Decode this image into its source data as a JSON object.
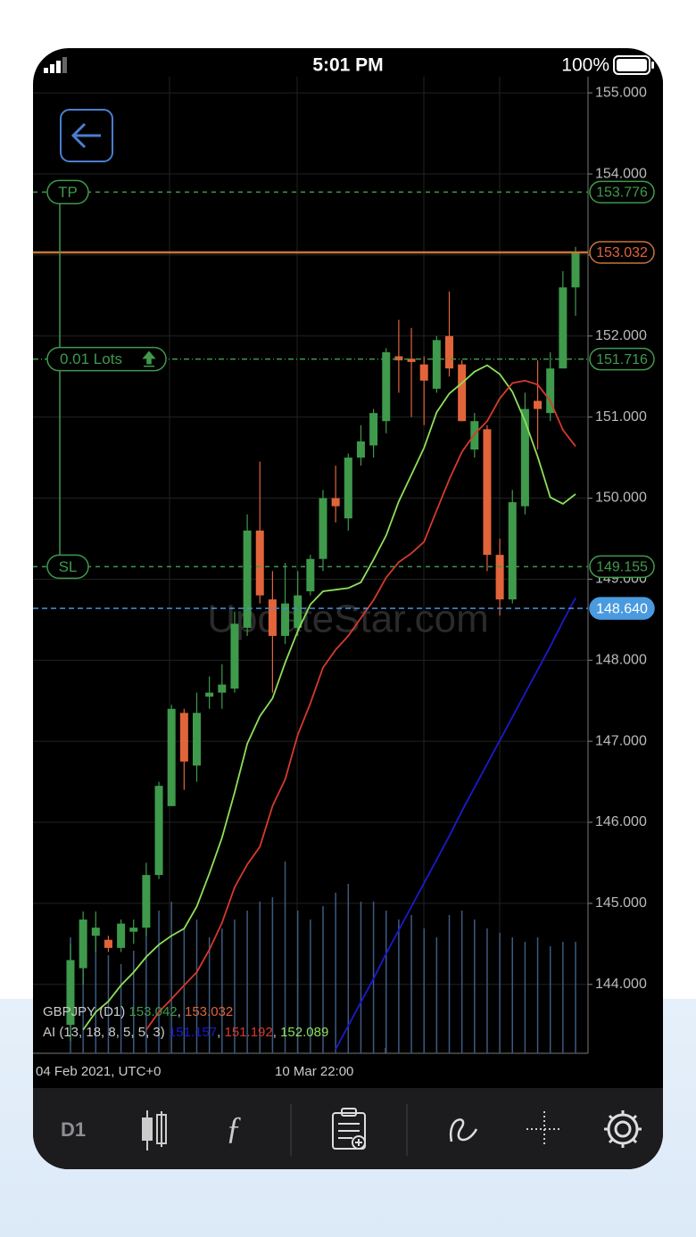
{
  "status_bar": {
    "time": "5:01 PM",
    "battery": "100%"
  },
  "chart": {
    "ylim": [
      143.15,
      155.2
    ],
    "yticks": [
      {
        "value": 155,
        "label": "155.000"
      },
      {
        "value": 154,
        "label": "154.000"
      },
      {
        "value": 153,
        "label": "153.000"
      },
      {
        "value": 152,
        "label": "152.000"
      },
      {
        "value": 151,
        "label": "151.000"
      },
      {
        "value": 150,
        "label": "150.000"
      },
      {
        "value": 149,
        "label": "149.000"
      },
      {
        "value": 148,
        "label": "148.000"
      },
      {
        "value": 147,
        "label": "147.000"
      },
      {
        "value": 146,
        "label": "146.000"
      },
      {
        "value": 145,
        "label": "145.000"
      },
      {
        "value": 144,
        "label": "144.000"
      }
    ],
    "x_labels": [
      "04 Feb 2021, UTC+0",
      "10 Mar 22:00"
    ],
    "candles": [
      {
        "o": 143.5,
        "h": 144.5,
        "l": 143.3,
        "c": 144.3
      },
      {
        "o": 144.2,
        "h": 144.9,
        "l": 144.0,
        "c": 144.8
      },
      {
        "o": 144.6,
        "h": 144.9,
        "l": 144.4,
        "c": 144.7
      },
      {
        "o": 144.55,
        "h": 144.6,
        "l": 144.4,
        "c": 144.45
      },
      {
        "o": 144.45,
        "h": 144.8,
        "l": 144.4,
        "c": 144.75
      },
      {
        "o": 144.65,
        "h": 144.8,
        "l": 144.5,
        "c": 144.7
      },
      {
        "o": 144.7,
        "h": 145.5,
        "l": 144.6,
        "c": 145.35
      },
      {
        "o": 145.35,
        "h": 146.5,
        "l": 145.3,
        "c": 146.45
      },
      {
        "o": 146.2,
        "h": 147.45,
        "l": 146.2,
        "c": 147.4
      },
      {
        "o": 147.35,
        "h": 147.4,
        "l": 146.4,
        "c": 146.75
      },
      {
        "o": 146.7,
        "h": 147.6,
        "l": 146.5,
        "c": 147.35
      },
      {
        "o": 147.55,
        "h": 147.8,
        "l": 147.4,
        "c": 147.6
      },
      {
        "o": 147.6,
        "h": 147.95,
        "l": 147.4,
        "c": 147.7
      },
      {
        "o": 147.65,
        "h": 148.6,
        "l": 147.6,
        "c": 148.45
      },
      {
        "o": 148.4,
        "h": 149.8,
        "l": 148.3,
        "c": 149.6
      },
      {
        "o": 149.6,
        "h": 150.45,
        "l": 148.7,
        "c": 148.8
      },
      {
        "o": 148.75,
        "h": 149.1,
        "l": 147.6,
        "c": 148.3
      },
      {
        "o": 148.3,
        "h": 149.2,
        "l": 148.2,
        "c": 148.7
      },
      {
        "o": 148.4,
        "h": 149.1,
        "l": 148.3,
        "c": 148.8
      },
      {
        "o": 148.85,
        "h": 149.3,
        "l": 148.8,
        "c": 149.25
      },
      {
        "o": 149.25,
        "h": 150.1,
        "l": 149.1,
        "c": 150.0
      },
      {
        "o": 150.0,
        "h": 150.4,
        "l": 149.7,
        "c": 149.9
      },
      {
        "o": 149.75,
        "h": 150.55,
        "l": 149.6,
        "c": 150.5
      },
      {
        "o": 150.5,
        "h": 150.9,
        "l": 150.4,
        "c": 150.7
      },
      {
        "o": 150.65,
        "h": 151.1,
        "l": 150.5,
        "c": 151.05
      },
      {
        "o": 150.95,
        "h": 151.85,
        "l": 150.8,
        "c": 151.8
      },
      {
        "o": 151.75,
        "h": 152.2,
        "l": 151.3,
        "c": 151.7
      },
      {
        "o": 151.72,
        "h": 152.1,
        "l": 151.0,
        "c": 151.68
      },
      {
        "o": 151.65,
        "h": 151.75,
        "l": 150.9,
        "c": 151.45
      },
      {
        "o": 151.35,
        "h": 152.0,
        "l": 151.3,
        "c": 151.95
      },
      {
        "o": 152.0,
        "h": 152.55,
        "l": 151.5,
        "c": 151.6
      },
      {
        "o": 151.65,
        "h": 151.7,
        "l": 150.95,
        "c": 150.95
      },
      {
        "o": 150.6,
        "h": 151.05,
        "l": 150.5,
        "c": 150.95
      },
      {
        "o": 150.85,
        "h": 150.9,
        "l": 149.1,
        "c": 149.3
      },
      {
        "o": 149.3,
        "h": 149.5,
        "l": 148.55,
        "c": 148.75
      },
      {
        "o": 148.75,
        "h": 150.1,
        "l": 148.7,
        "c": 149.95
      },
      {
        "o": 149.9,
        "h": 151.3,
        "l": 149.8,
        "c": 151.1
      },
      {
        "o": 151.2,
        "h": 151.7,
        "l": 150.6,
        "c": 151.1
      },
      {
        "o": 151.05,
        "h": 151.8,
        "l": 150.95,
        "c": 151.6
      },
      {
        "o": 151.6,
        "h": 152.8,
        "l": 151.6,
        "c": 152.6
      },
      {
        "o": 152.6,
        "h": 153.1,
        "l": 152.25,
        "c": 153.03
      }
    ],
    "volumes": [
      130,
      120,
      140,
      110,
      100,
      115,
      150,
      160,
      170,
      140,
      150,
      130,
      140,
      150,
      160,
      170,
      175,
      215,
      160,
      150,
      165,
      180,
      190,
      170,
      170,
      160,
      150,
      155,
      140,
      130,
      155,
      160,
      150,
      140,
      135,
      130,
      125,
      130,
      120,
      125,
      125
    ],
    "series": [
      {
        "name": "lips",
        "color": "#8ee05a",
        "values": [
          null,
          143.44,
          143.66,
          143.79,
          143.99,
          144.15,
          144.34,
          144.49,
          144.6,
          144.69,
          144.96,
          145.37,
          145.81,
          146.37,
          146.97,
          147.31,
          147.53,
          147.97,
          148.36,
          148.69,
          148.85,
          148.87,
          148.89,
          148.96,
          149.24,
          149.54,
          149.96,
          150.29,
          150.62,
          151.06,
          151.29,
          151.42,
          151.56,
          151.64,
          151.53,
          151.31,
          150.95,
          150.51,
          150.01,
          149.93,
          150.05
        ]
      },
      {
        "name": "teeth",
        "color": "#d63a2c",
        "values": [
          null,
          null,
          null,
          null,
          null,
          null,
          143.44,
          143.66,
          143.82,
          143.99,
          144.15,
          144.43,
          144.76,
          145.2,
          145.48,
          145.7,
          146.2,
          146.53,
          147.08,
          147.47,
          147.91,
          148.13,
          148.3,
          148.52,
          148.74,
          149.02,
          149.21,
          149.32,
          149.46,
          149.85,
          150.23,
          150.57,
          150.79,
          150.95,
          151.23,
          151.42,
          151.45,
          151.4,
          151.2,
          150.84,
          150.64
        ]
      },
      {
        "name": "jaw",
        "color": "#1a1ad0",
        "values": [
          null,
          null,
          null,
          null,
          null,
          null,
          null,
          null,
          null,
          null,
          null,
          null,
          null,
          null,
          null,
          null,
          null,
          null,
          null,
          null,
          null,
          143.2,
          143.49,
          143.78,
          144.07,
          144.38,
          144.67,
          144.96,
          145.25,
          145.54,
          145.83,
          146.14,
          146.43,
          146.72,
          147.01,
          147.3,
          147.59,
          147.88,
          148.17,
          148.48,
          148.77
        ]
      }
    ],
    "levels": {
      "tp": {
        "tag": "TP",
        "value": 153.776,
        "label": "153.776"
      },
      "price": {
        "value": 153.032,
        "label": "153.032"
      },
      "lots": {
        "tag": "0.01 Lots",
        "value": 151.716,
        "label": "151.716"
      },
      "sl": {
        "tag": "SL",
        "value": 149.155,
        "label": "149.155"
      },
      "bid": {
        "value": 148.64,
        "label": "148.640"
      }
    },
    "legend": {
      "symbol": "GBPJPY (D1)",
      "bid": "153.042",
      "ask": "153.032",
      "indicator": "AI (13, 18, 8, 5, 5, 3)",
      "jaw": "151.157",
      "teeth": "151.192",
      "lips": "152.089"
    },
    "watermark": "UpdateStar.com"
  },
  "toolbar": {
    "timeframe": "D1"
  }
}
